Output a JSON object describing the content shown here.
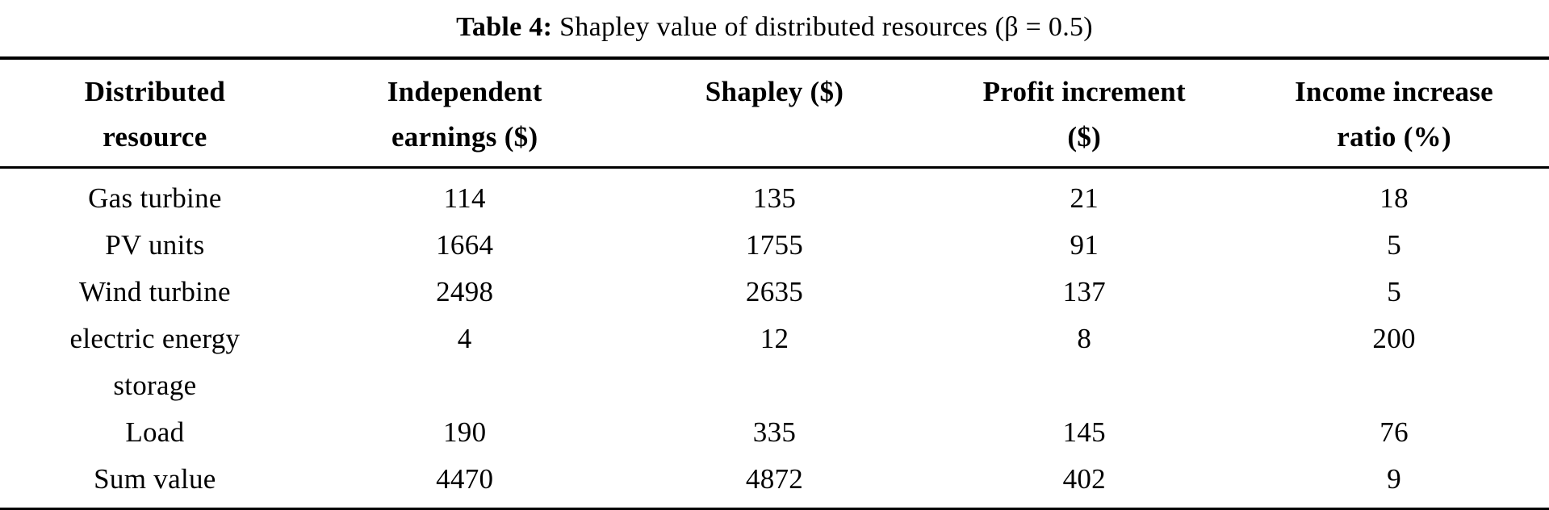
{
  "caption": {
    "label": "Table 4:",
    "text": " Shapley value of distributed resources (β = 0.5)"
  },
  "table": {
    "columns": [
      {
        "line1": "Distributed",
        "line2": "resource"
      },
      {
        "line1": "Independent",
        "line2": "earnings ($)"
      },
      {
        "line1": "Shapley ($)",
        "line2": ""
      },
      {
        "line1": "Profit increment",
        "line2": "($)"
      },
      {
        "line1": "Income increase",
        "line2": "ratio (%)"
      }
    ],
    "rows": [
      {
        "resource_line1": "Gas turbine",
        "resource_line2": "",
        "values": [
          "114",
          "135",
          "21",
          "18"
        ]
      },
      {
        "resource_line1": "PV units",
        "resource_line2": "",
        "values": [
          "1664",
          "1755",
          "91",
          "5"
        ]
      },
      {
        "resource_line1": "Wind turbine",
        "resource_line2": "",
        "values": [
          "2498",
          "2635",
          "137",
          "5"
        ]
      },
      {
        "resource_line1": "electric energy",
        "resource_line2": "storage",
        "values": [
          "4",
          "12",
          "8",
          "200"
        ]
      },
      {
        "resource_line1": "Load",
        "resource_line2": "",
        "values": [
          "190",
          "335",
          "145",
          "76"
        ]
      },
      {
        "resource_line1": "Sum value",
        "resource_line2": "",
        "values": [
          "4470",
          "4872",
          "402",
          "9"
        ]
      }
    ]
  }
}
